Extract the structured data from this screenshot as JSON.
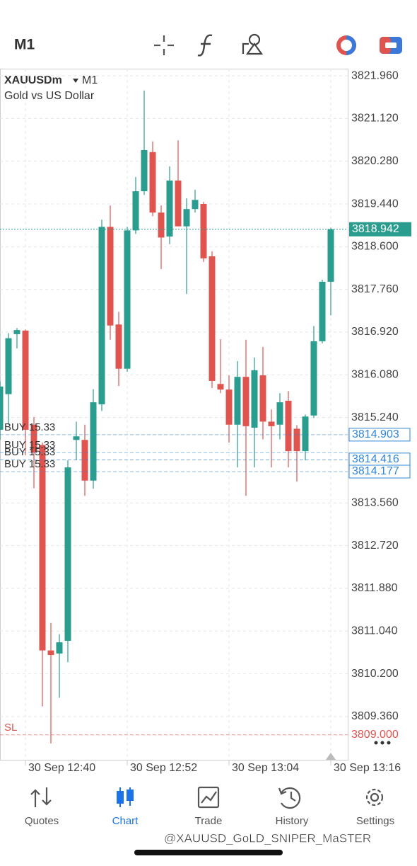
{
  "toolbar": {
    "timeframe": "M1"
  },
  "chart_data": {
    "type": "candlestick",
    "symbol": "XAUUSDm",
    "timeframe": "M1",
    "description": "Gold vs US Dollar",
    "categories": [
      null,
      null,
      null,
      "30 Sep 12:40",
      null,
      null,
      null,
      null,
      null,
      null,
      null,
      null,
      null,
      null,
      null,
      "30 Sep 12:52",
      null,
      null,
      null,
      null,
      null,
      null,
      null,
      null,
      null,
      null,
      null,
      "30 Sep 13:04",
      null,
      null,
      null,
      null,
      null,
      null,
      null,
      null,
      null,
      null,
      null,
      "30 Sep 13:16"
    ],
    "open": [
      3815.0,
      3815.7,
      3816.88,
      3816.95,
      3815.1,
      3814.7,
      3810.66,
      3810.6,
      3810.85,
      3814.8,
      3814.8,
      3814.0,
      3815.5,
      3818.99,
      3817.07,
      3816.2,
      3818.92,
      3819.69,
      3820.46,
      3819.27,
      3818.8,
      3819.9,
      3819.0,
      3819.34,
      3819.44,
      3818.41,
      3815.9,
      3815.79,
      3815.1,
      3816.04,
      3815.04,
      3816.07,
      3815.16,
      3815.1,
      3815.57,
      3815.02,
      3814.58,
      3815.28,
      3816.74,
      3817.91
    ],
    "high": [
      3815.95,
      3816.9,
      3817.0,
      3816.97,
      3815.25,
      3814.75,
      3811.2,
      3810.98,
      3814.4,
      3815.16,
      3815.1,
      3815.8,
      3819.13,
      3819.41,
      3817.32,
      3818.99,
      3819.97,
      3821.67,
      3820.67,
      3819.41,
      3820.18,
      3820.69,
      3819.55,
      3819.72,
      3819.48,
      3818.51,
      3816.78,
      3816.07,
      3816.35,
      3816.77,
      3816.42,
      3816.63,
      3815.4,
      3815.72,
      3815.76,
      3815.09,
      3815.3,
      3817.04,
      3817.95,
      3818.97
    ],
    "low": [
      3814.8,
      3815.1,
      3816.6,
      3814.5,
      3813.85,
      3809.56,
      3808.83,
      3809.73,
      3810.43,
      3814.4,
      3813.7,
      3813.84,
      3815.37,
      3816.77,
      3815.86,
      3816.14,
      3818.85,
      3819.62,
      3819.2,
      3818.16,
      3818.65,
      3819.0,
      3817.67,
      3819.27,
      3818.3,
      3815.82,
      3815.72,
      3814.75,
      3814.26,
      3813.7,
      3814.26,
      3814.81,
      3814.26,
      3814.81,
      3814.26,
      3813.98,
      3814.4,
      3815.23,
      3816.7,
      3817.25
    ],
    "close": [
      3815.85,
      3816.8,
      3816.96,
      3815.0,
      3814.55,
      3810.66,
      3810.57,
      3810.82,
      3814.26,
      3814.87,
      3814.0,
      3815.54,
      3818.99,
      3817.05,
      3816.2,
      3818.92,
      3819.69,
      3820.5,
      3819.27,
      3818.78,
      3819.9,
      3819.0,
      3819.34,
      3819.52,
      3818.37,
      3815.96,
      3815.79,
      3815.1,
      3816.04,
      3815.07,
      3816.17,
      3815.16,
      3815.07,
      3815.54,
      3814.58,
      3814.58,
      3815.26,
      3816.74,
      3817.91,
      3818.942
    ],
    "up_color": "#2a9d8f",
    "down_color": "#e0544f",
    "ylim": [
      3808.51,
      3822.1
    ],
    "yticks": [
      {
        "value": 3809.36,
        "label": "3809.360"
      },
      {
        "value": 3810.2,
        "label": "3810.200"
      },
      {
        "value": 3811.04,
        "label": "3811.040"
      },
      {
        "value": 3811.88,
        "label": "3811.880"
      },
      {
        "value": 3812.72,
        "label": "3812.720"
      },
      {
        "value": 3813.56,
        "label": "3813.560"
      },
      {
        "value": 3814.4,
        "label": "3814.400"
      },
      {
        "value": 3815.24,
        "label": "3815.240"
      },
      {
        "value": 3816.08,
        "label": "3816.080"
      },
      {
        "value": 3816.92,
        "label": "3816.920"
      },
      {
        "value": 3817.76,
        "label": "3817.760"
      },
      {
        "value": 3818.6,
        "label": "3818.600"
      },
      {
        "value": 3819.44,
        "label": "3819.440"
      },
      {
        "value": 3820.28,
        "label": "3820.280"
      },
      {
        "value": 3821.12,
        "label": "3821.120"
      },
      {
        "value": 3821.96,
        "label": "3821.960"
      }
    ],
    "grid": true,
    "current_price": {
      "value": 3818.942,
      "label": "3818.942",
      "color": "#2a9d8f"
    },
    "orders": [
      {
        "label": "BUY 15.33",
        "price": 3814.903,
        "price_label": "3814.903"
      },
      {
        "label": "BUY 15.33",
        "price": 3814.55
      },
      {
        "label": "BUY 15.33",
        "price": 3814.416,
        "price_label": "3814.416"
      },
      {
        "label": "BUY 15.33",
        "price": 3814.177,
        "price_label": "3814.177"
      }
    ],
    "order_color": "#2f86d6",
    "stop_loss": {
      "label": "SL",
      "price": 3809.0,
      "price_label": "3809.000",
      "color": "#e0544f"
    }
  },
  "tabs": [
    "Quotes",
    "Chart",
    "Trade",
    "History",
    "Settings"
  ],
  "active_tab": 1,
  "watermark": "@XAUUSD_GoLD_SNIPER_MaSTER"
}
